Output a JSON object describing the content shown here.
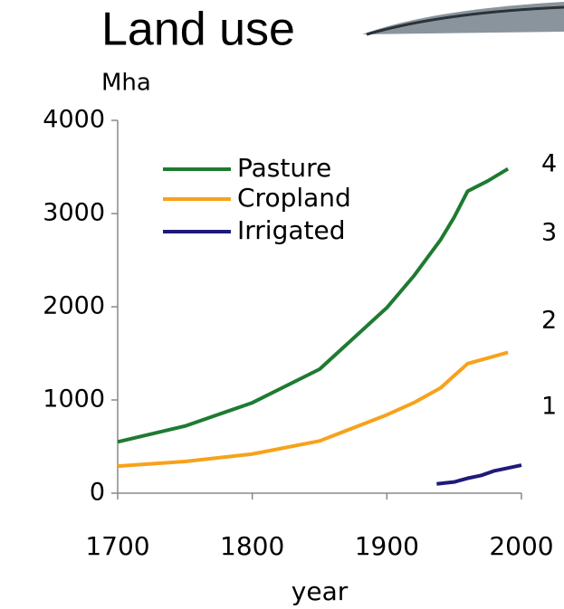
{
  "chart_data": {
    "type": "line",
    "title": "Land use",
    "y_label": "Mha",
    "x_label": "year",
    "xlim": [
      1700,
      2000
    ],
    "xticks": [
      1700,
      1800,
      1900,
      2000
    ],
    "ylim": [
      0,
      4000
    ],
    "yticks": [
      0,
      1000,
      2000,
      3000,
      4000
    ],
    "grid": false,
    "legend": "upper left",
    "series": [
      {
        "name": "Pasture",
        "color": "#1e7b32",
        "x": [
          1700,
          1750,
          1800,
          1850,
          1900,
          1920,
          1940,
          1950,
          1960,
          1975,
          1990
        ],
        "values": [
          550,
          720,
          970,
          1330,
          1990,
          2330,
          2720,
          2960,
          3240,
          3350,
          3480
        ]
      },
      {
        "name": "Cropland",
        "color": "#f7a21b",
        "x": [
          1700,
          1750,
          1800,
          1850,
          1900,
          1920,
          1940,
          1960,
          1975,
          1990
        ],
        "values": [
          290,
          340,
          420,
          560,
          840,
          970,
          1130,
          1390,
          1450,
          1510
        ]
      },
      {
        "name": "Irrigated",
        "color": "#1f1a7a",
        "x": [
          1937,
          1950,
          1960,
          1970,
          1980,
          2000
        ],
        "values": [
          100,
          120,
          160,
          190,
          240,
          300
        ]
      }
    ]
  },
  "cropped_labels": [
    "4",
    "3",
    "2",
    "1"
  ]
}
